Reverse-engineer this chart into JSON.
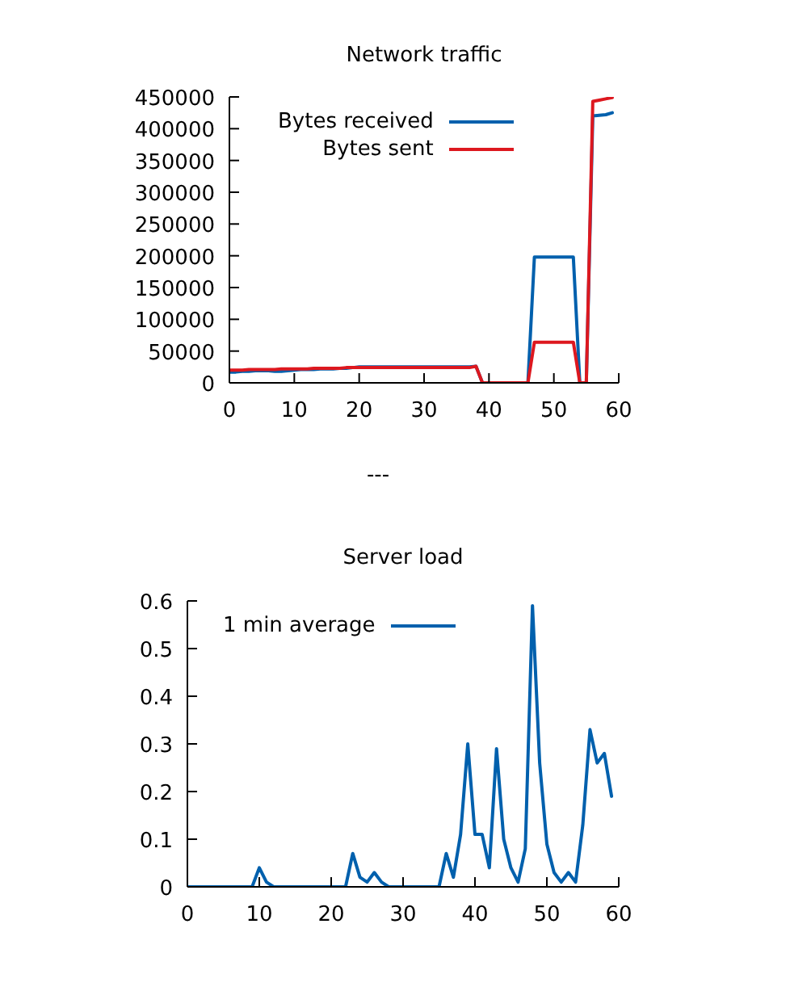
{
  "chart_data": [
    {
      "type": "line",
      "title": "Network traffic",
      "x": [
        0,
        1,
        2,
        3,
        4,
        5,
        6,
        7,
        8,
        9,
        10,
        11,
        12,
        13,
        14,
        15,
        16,
        17,
        18,
        19,
        20,
        21,
        22,
        23,
        24,
        25,
        26,
        27,
        28,
        29,
        30,
        31,
        32,
        33,
        34,
        35,
        36,
        37,
        38,
        39,
        40,
        41,
        42,
        43,
        44,
        45,
        46,
        47,
        48,
        49,
        50,
        51,
        52,
        53,
        54,
        55,
        56,
        57,
        58,
        59
      ],
      "series": [
        {
          "name": "Bytes received",
          "color": "#0060ad",
          "values": [
            17000,
            17000,
            18000,
            18000,
            19000,
            19000,
            19000,
            18000,
            18000,
            19000,
            20000,
            21000,
            21000,
            21000,
            22000,
            22000,
            22000,
            23000,
            23000,
            24000,
            25000,
            25000,
            25000,
            25000,
            25000,
            25000,
            25000,
            25000,
            25000,
            25000,
            25000,
            25000,
            25000,
            25000,
            25000,
            25000,
            25000,
            25000,
            26000,
            0,
            0,
            0,
            0,
            0,
            0,
            0,
            0,
            198000,
            198000,
            198000,
            198000,
            198000,
            198000,
            198000,
            0,
            0,
            420000,
            421000,
            422000,
            425000
          ]
        },
        {
          "name": "Bytes sent",
          "color": "#dd181f",
          "values": [
            20000,
            20000,
            20000,
            21000,
            21000,
            21000,
            21000,
            21000,
            22000,
            22000,
            22000,
            22000,
            22000,
            23000,
            23000,
            23000,
            23000,
            23000,
            24000,
            24000,
            24000,
            24000,
            24000,
            24000,
            24000,
            24000,
            24000,
            24000,
            24000,
            24000,
            24000,
            24000,
            24000,
            24000,
            24000,
            24000,
            24000,
            24000,
            26000,
            0,
            0,
            0,
            0,
            0,
            0,
            0,
            0,
            64000,
            64000,
            64000,
            64000,
            64000,
            64000,
            64000,
            0,
            0,
            443000,
            445000,
            447000,
            449000
          ]
        }
      ],
      "xlim": [
        0,
        60
      ],
      "xticks": [
        0,
        10,
        20,
        30,
        40,
        50,
        60
      ],
      "ylim": [
        0,
        450000
      ],
      "yticks": [
        0,
        50000,
        100000,
        150000,
        200000,
        250000,
        300000,
        350000,
        400000,
        450000
      ],
      "legend": "top left",
      "marker": "none",
      "line_style": "solid",
      "annotations": [
        "---"
      ]
    },
    {
      "type": "line",
      "title": "Server load",
      "x": [
        0,
        1,
        2,
        3,
        4,
        5,
        6,
        7,
        8,
        9,
        10,
        11,
        12,
        13,
        14,
        15,
        16,
        17,
        18,
        19,
        20,
        21,
        22,
        23,
        24,
        25,
        26,
        27,
        28,
        29,
        30,
        31,
        32,
        33,
        34,
        35,
        36,
        37,
        38,
        39,
        40,
        41,
        42,
        43,
        44,
        45,
        46,
        47,
        48,
        49,
        50,
        51,
        52,
        53,
        54,
        55,
        56,
        57,
        58,
        59
      ],
      "series": [
        {
          "name": "1 min average",
          "color": "#0060ad",
          "values": [
            0,
            0,
            0,
            0,
            0,
            0,
            0,
            0,
            0,
            0,
            0.04,
            0.01,
            0,
            0,
            0,
            0,
            0,
            0,
            0,
            0,
            0,
            0,
            0,
            0.07,
            0.02,
            0.01,
            0.03,
            0.01,
            0,
            0,
            0,
            0,
            0,
            0,
            0,
            0,
            0.07,
            0.02,
            0.11,
            0.3,
            0.11,
            0.11,
            0.04,
            0.29,
            0.1,
            0.04,
            0.01,
            0.08,
            0.59,
            0.26,
            0.09,
            0.03,
            0.01,
            0.03,
            0.01,
            0.13,
            0.33,
            0.26,
            0.28,
            0.19
          ]
        }
      ],
      "xlim": [
        0,
        60
      ],
      "xticks": [
        0,
        10,
        20,
        30,
        40,
        50,
        60
      ],
      "ylim": [
        0,
        0.6
      ],
      "yticks": [
        0,
        0.1,
        0.2,
        0.3,
        0.4,
        0.5,
        0.6
      ],
      "legend": "top left",
      "marker": "none",
      "line_style": "solid"
    }
  ]
}
